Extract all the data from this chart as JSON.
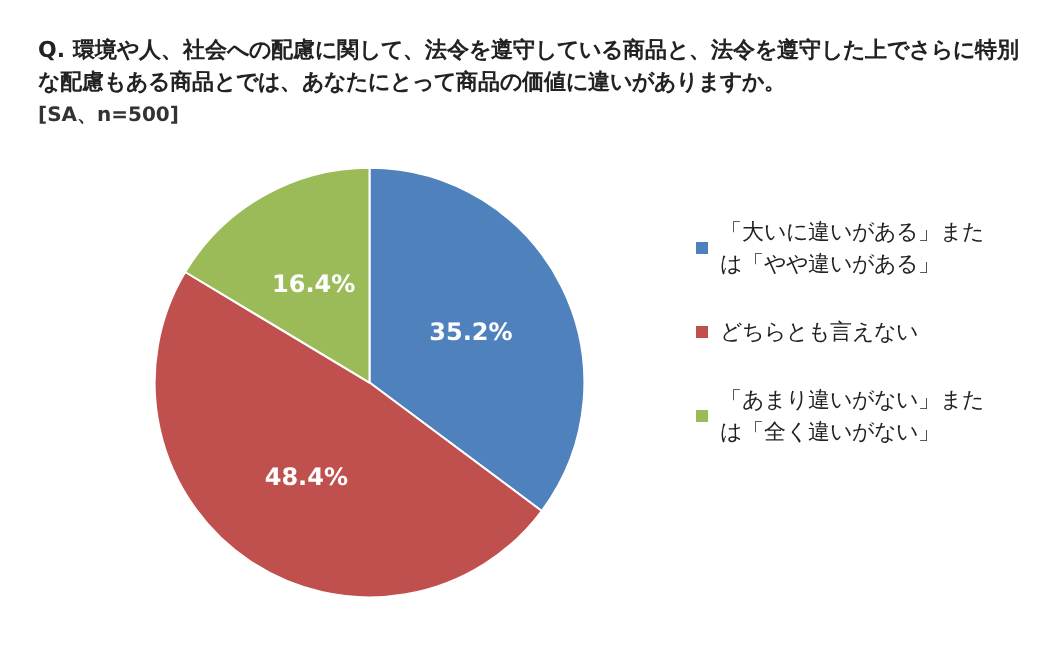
{
  "chart_data": {
    "type": "pie",
    "title": "Q. 環境や人、社会への配慮に関して、法令を遵守している商品と、法令を遵守した上でさらに特別な配慮もある商品とでは、あなたにとって商品の価値に違いがありますか。",
    "subtitle": "[SA、n=500]",
    "categories": [
      "「大いに違いがある」または「やや違いがある」",
      "どちらとも言えない",
      "「あまり違いがない」または「全く違いがない」"
    ],
    "values": [
      35.2,
      48.4,
      16.4
    ],
    "colors": [
      "#4f81bd",
      "#c0504d",
      "#9bbb59"
    ],
    "value_labels": [
      "35.2%",
      "48.4%",
      "16.4%"
    ],
    "legend": "right"
  }
}
